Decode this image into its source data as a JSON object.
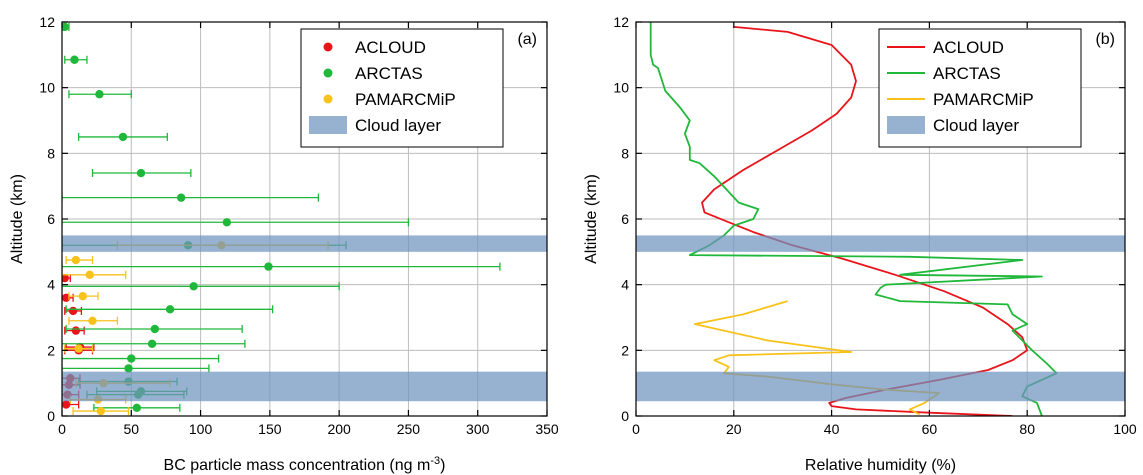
{
  "colors": {
    "ACLOUD": "#e8141a",
    "ARCTAS": "#20b83a",
    "PAMARCMiP": "#f8c21a",
    "cloud_layer": "#6f93bf",
    "grid": "#bdbdbd"
  },
  "chart_data": [
    {
      "panel": "(a)",
      "type": "scatter",
      "xlabel": "BC particle mass concentration (ng m",
      "xlabel_sup": "-3",
      "xlabel_end": ")",
      "ylabel": "Altitude (km)",
      "xlim": [
        0,
        350
      ],
      "ylim": [
        0,
        12
      ],
      "xticks": [
        "0",
        "50",
        "100",
        "150",
        "200",
        "250",
        "300",
        "350"
      ],
      "yticks": [
        "0",
        "2",
        "4",
        "6",
        "8",
        "10",
        "12"
      ],
      "grid": true,
      "legend_position": "top-right",
      "legend": [
        "ACLOUD",
        "ARCTAS",
        "PAMARCMiP",
        "Cloud layer"
      ],
      "cloud_layers": [
        [
          0.45,
          1.35
        ],
        [
          5.0,
          5.5
        ]
      ],
      "series": [
        {
          "name": "ACLOUD",
          "color_key": "ACLOUD",
          "points": [
            {
              "x": 3,
              "y": 0.35,
              "xmin": 0,
              "xmax": 12
            },
            {
              "x": 4,
              "y": 0.65,
              "xmin": 0,
              "xmax": 12
            },
            {
              "x": 5,
              "y": 0.95,
              "xmin": 0,
              "xmax": 13
            },
            {
              "x": 6,
              "y": 1.15,
              "xmin": 0,
              "xmax": 13
            },
            {
              "x": 12,
              "y": 2.0,
              "xmin": 2,
              "xmax": 22
            },
            {
              "x": 13,
              "y": 2.1,
              "xmin": 3,
              "xmax": 23
            },
            {
              "x": 10,
              "y": 2.6,
              "xmin": 2,
              "xmax": 16
            },
            {
              "x": 8,
              "y": 3.2,
              "xmin": 2,
              "xmax": 14
            },
            {
              "x": 3,
              "y": 3.6,
              "xmin": 0,
              "xmax": 8
            },
            {
              "x": 2,
              "y": 4.2,
              "xmin": 0,
              "xmax": 6
            }
          ]
        },
        {
          "name": "ARCTAS",
          "color_key": "ARCTAS",
          "points": [
            {
              "x": 54,
              "y": 0.25,
              "xmin": 23,
              "xmax": 85
            },
            {
              "x": 55,
              "y": 0.65,
              "xmin": 18,
              "xmax": 88
            },
            {
              "x": 57,
              "y": 0.75,
              "xmin": 25,
              "xmax": 90
            },
            {
              "x": 48,
              "y": 1.05,
              "xmin": 12,
              "xmax": 83
            },
            {
              "x": 48,
              "y": 1.45,
              "xmin": 0,
              "xmax": 106
            },
            {
              "x": 50,
              "y": 1.75,
              "xmin": 0,
              "xmax": 113
            },
            {
              "x": 65,
              "y": 2.2,
              "xmin": 0,
              "xmax": 132
            },
            {
              "x": 67,
              "y": 2.65,
              "xmin": 3,
              "xmax": 130
            },
            {
              "x": 78,
              "y": 3.25,
              "xmin": 3,
              "xmax": 152
            },
            {
              "x": 95,
              "y": 3.95,
              "xmin": 0,
              "xmax": 200
            },
            {
              "x": 149,
              "y": 4.55,
              "xmin": 0,
              "xmax": 316
            },
            {
              "x": 91,
              "y": 5.2,
              "xmin": 0,
              "xmax": 205
            },
            {
              "x": 119,
              "y": 5.9,
              "xmin": 0,
              "xmax": 250
            },
            {
              "x": 86,
              "y": 6.65,
              "xmin": 0,
              "xmax": 185
            },
            {
              "x": 57,
              "y": 7.4,
              "xmin": 22,
              "xmax": 93
            },
            {
              "x": 44,
              "y": 8.5,
              "xmin": 12,
              "xmax": 76
            },
            {
              "x": 27,
              "y": 9.8,
              "xmin": 5,
              "xmax": 50
            },
            {
              "x": 9,
              "y": 10.85,
              "xmin": 2,
              "xmax": 18
            },
            {
              "x": 2,
              "y": 11.85,
              "xmin": 0,
              "xmax": 5
            }
          ]
        },
        {
          "name": "PAMARCMiP",
          "color_key": "PAMARCMiP",
          "points": [
            {
              "x": 28,
              "y": 0.15,
              "xmin": 8,
              "xmax": 48
            },
            {
              "x": 26,
              "y": 0.5,
              "xmin": 6,
              "xmax": 46
            },
            {
              "x": 30,
              "y": 1.0,
              "xmin": 10,
              "xmax": 78
            },
            {
              "x": 12,
              "y": 2.05,
              "xmin": 2,
              "xmax": 22
            },
            {
              "x": 22,
              "y": 2.9,
              "xmin": 5,
              "xmax": 40
            },
            {
              "x": 15,
              "y": 3.65,
              "xmin": 5,
              "xmax": 26
            },
            {
              "x": 20,
              "y": 4.3,
              "xmin": 0,
              "xmax": 46
            },
            {
              "x": 10,
              "y": 4.75,
              "xmin": 3,
              "xmax": 22
            },
            {
              "x": 115,
              "y": 5.2,
              "xmin": 40,
              "xmax": 192
            }
          ]
        }
      ]
    },
    {
      "panel": "(b)",
      "type": "line",
      "xlabel": "Relative humidity (%)",
      "ylabel": "Altitude (km)",
      "xlim": [
        0,
        100
      ],
      "ylim": [
        0,
        12
      ],
      "xticks": [
        "0",
        "20",
        "40",
        "60",
        "80",
        "100"
      ],
      "yticks": [
        "0",
        "2",
        "4",
        "6",
        "8",
        "10",
        "12"
      ],
      "grid": true,
      "legend_position": "top-right",
      "legend": [
        "ACLOUD",
        "ARCTAS",
        "PAMARCMiP",
        "Cloud layer"
      ],
      "cloud_layers": [
        [
          0.45,
          1.35
        ],
        [
          5.0,
          5.5
        ]
      ],
      "series": [
        {
          "name": "ACLOUD",
          "color_key": "ACLOUD",
          "points": [
            [
              77,
              0.0
            ],
            [
              60,
              0.1
            ],
            [
              45,
              0.2
            ],
            [
              40,
              0.3
            ],
            [
              39.5,
              0.4
            ],
            [
              43,
              0.55
            ],
            [
              51,
              0.8
            ],
            [
              62,
              1.1
            ],
            [
              72,
              1.4
            ],
            [
              77,
              1.7
            ],
            [
              80,
              2.0
            ],
            [
              79,
              2.4
            ],
            [
              76,
              2.8
            ],
            [
              71,
              3.3
            ],
            [
              63,
              3.8
            ],
            [
              53,
              4.3
            ],
            [
              42,
              4.8
            ],
            [
              32,
              5.2
            ],
            [
              24,
              5.6
            ],
            [
              19,
              5.9
            ],
            [
              14,
              6.2
            ],
            [
              13.5,
              6.5
            ],
            [
              16,
              6.9
            ],
            [
              22,
              7.5
            ],
            [
              29,
              8.1
            ],
            [
              36,
              8.7
            ],
            [
              41,
              9.2
            ],
            [
              44,
              9.7
            ],
            [
              45,
              10.2
            ],
            [
              44,
              10.7
            ],
            [
              40,
              11.3
            ],
            [
              31,
              11.7
            ],
            [
              20,
              11.85
            ]
          ]
        },
        {
          "name": "ARCTAS",
          "color_key": "ARCTAS",
          "points": [
            [
              83,
              0.0
            ],
            [
              82,
              0.4
            ],
            [
              79,
              0.6
            ],
            [
              80,
              0.9
            ],
            [
              86,
              1.3
            ],
            [
              84,
              1.6
            ],
            [
              81,
              2.0
            ],
            [
              77,
              2.6
            ],
            [
              80,
              2.8
            ],
            [
              77,
              3.1
            ],
            [
              76,
              3.4
            ],
            [
              54,
              3.5
            ],
            [
              49,
              3.7
            ],
            [
              50,
              3.9
            ],
            [
              51,
              4.0
            ],
            [
              83,
              4.25
            ],
            [
              54,
              4.3
            ],
            [
              79,
              4.75
            ],
            [
              56,
              4.85
            ],
            [
              11,
              4.9
            ],
            [
              15,
              5.2
            ],
            [
              18,
              5.5
            ],
            [
              20,
              5.8
            ],
            [
              24,
              6.0
            ],
            [
              25,
              6.3
            ],
            [
              21,
              6.5
            ],
            [
              16,
              7.3
            ],
            [
              13,
              7.7
            ],
            [
              11,
              7.8
            ],
            [
              11,
              8.2
            ],
            [
              10,
              8.6
            ],
            [
              11,
              9.0
            ],
            [
              9,
              9.4
            ],
            [
              6,
              9.9
            ],
            [
              4.5,
              10.6
            ],
            [
              3.5,
              10.7
            ],
            [
              3,
              11.0
            ],
            [
              3,
              12.0
            ]
          ]
        },
        {
          "name": "PAMARCMiP",
          "color_key": "PAMARCMiP",
          "points": [
            [
              58,
              0.05
            ],
            [
              56,
              0.2
            ],
            [
              59,
              0.4
            ],
            [
              62,
              0.7
            ],
            [
              51,
              0.8
            ],
            [
              41,
              0.95
            ],
            [
              27,
              1.2
            ],
            [
              18,
              1.3
            ],
            [
              19,
              1.5
            ],
            [
              16,
              1.7
            ],
            [
              19,
              1.85
            ],
            [
              44,
              1.95
            ],
            [
              27,
              2.3
            ],
            [
              12,
              2.8
            ],
            [
              22,
              3.1
            ],
            [
              31,
              3.5
            ]
          ]
        }
      ]
    }
  ]
}
